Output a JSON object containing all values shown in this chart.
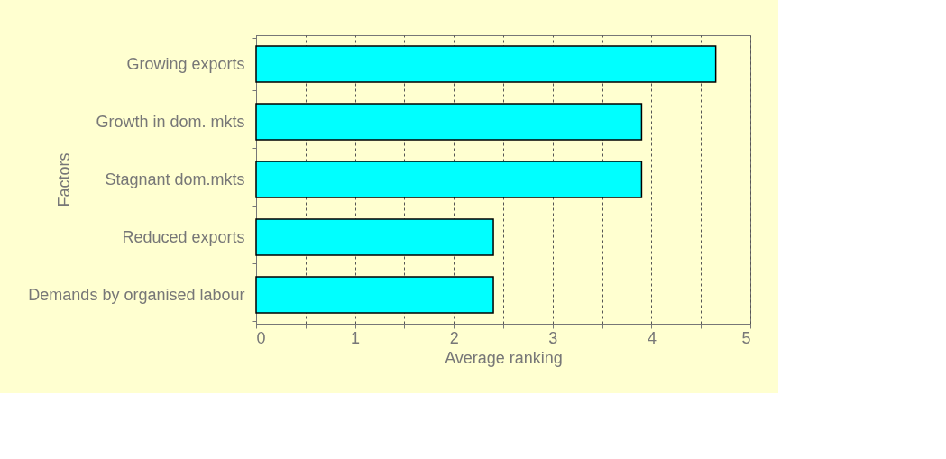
{
  "chart_data": {
    "type": "bar",
    "orientation": "horizontal",
    "xlabel": "Average ranking",
    "ylabel": "Factors",
    "categories": [
      "Growing exports",
      "Growth in dom. mkts",
      "Stagnant dom.mkts",
      "Reduced exports",
      "Demands by organised labour"
    ],
    "values": [
      4.65,
      3.9,
      3.9,
      2.4,
      2.4
    ],
    "color": "#00ffff",
    "xlim": [
      0,
      5
    ],
    "xticks": [
      0,
      {
        "value": 0.5,
        "label": null
      },
      1,
      {
        "value": 1.5,
        "label": null
      },
      2,
      {
        "value": 2.5,
        "label": null
      },
      3,
      {
        "value": 3.5,
        "label": null
      },
      4,
      {
        "value": 4.5,
        "label": null
      },
      5
    ],
    "grid": "x"
  }
}
